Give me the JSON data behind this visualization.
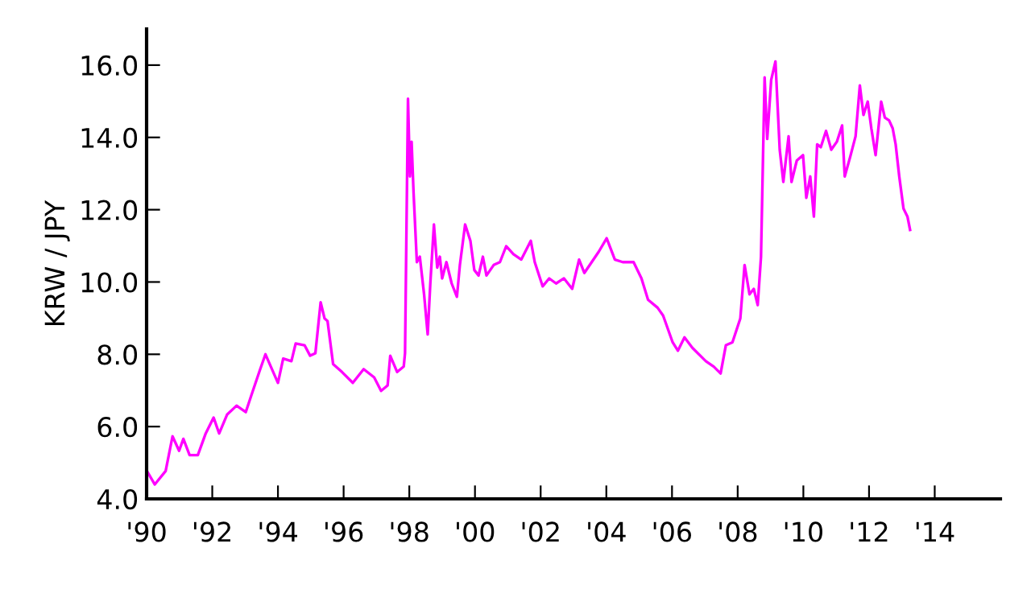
{
  "chart_data": {
    "type": "line",
    "ylabel": "KRW / JPY",
    "xlim": [
      1990,
      2016
    ],
    "ylim": [
      4,
      17
    ],
    "xticks": [
      {
        "value": 1990,
        "label": "'90"
      },
      {
        "value": 1992,
        "label": "'92"
      },
      {
        "value": 1994,
        "label": "'94"
      },
      {
        "value": 1996,
        "label": "'96"
      },
      {
        "value": 1998,
        "label": "'98"
      },
      {
        "value": 2000,
        "label": "'00"
      },
      {
        "value": 2002,
        "label": "'02"
      },
      {
        "value": 2004,
        "label": "'04"
      },
      {
        "value": 2006,
        "label": "'06"
      },
      {
        "value": 2008,
        "label": "'08"
      },
      {
        "value": 2010,
        "label": "'10"
      },
      {
        "value": 2012,
        "label": "'12"
      },
      {
        "value": 2014,
        "label": "'14"
      }
    ],
    "yticks": [
      {
        "value": 4,
        "label": "4.0"
      },
      {
        "value": 6,
        "label": "6.0"
      },
      {
        "value": 8,
        "label": "8.0"
      },
      {
        "value": 10,
        "label": "10.0"
      },
      {
        "value": 12,
        "label": "12.0"
      },
      {
        "value": 14,
        "label": "14.0"
      },
      {
        "value": 16,
        "label": "16.0"
      }
    ],
    "grid": false,
    "legend": false,
    "marker": "none",
    "line_style": "solid",
    "series": [
      {
        "color": "#ff00ff",
        "x": [
          1990.01,
          1990.25,
          1990.58,
          1990.79,
          1990.99,
          1991.12,
          1991.31,
          1991.56,
          1991.8,
          1992.04,
          1992.21,
          1992.45,
          1992.74,
          1993.02,
          1993.18,
          1993.46,
          1993.62,
          1994.0,
          1994.16,
          1994.41,
          1994.54,
          1994.81,
          1994.98,
          1995.14,
          1995.3,
          1995.42,
          1995.51,
          1995.68,
          1995.95,
          1996.28,
          1996.61,
          1996.93,
          1997.14,
          1997.34,
          1997.42,
          1997.63,
          1997.83,
          1997.87,
          1997.96,
          1998.02,
          1998.07,
          1998.13,
          1998.23,
          1998.32,
          1998.45,
          1998.56,
          1998.64,
          1998.75,
          1998.85,
          1998.93,
          1999.0,
          1999.13,
          1999.29,
          1999.45,
          1999.54,
          1999.7,
          1999.86,
          1999.98,
          2000.11,
          2000.24,
          2000.35,
          2000.57,
          2000.76,
          2000.95,
          2001.17,
          2001.41,
          2001.7,
          2001.82,
          2002.06,
          2002.26,
          2002.47,
          2002.71,
          2002.96,
          2003.17,
          2003.33,
          2003.77,
          2004.01,
          2004.26,
          2004.5,
          2004.83,
          2005.07,
          2005.27,
          2005.56,
          2005.73,
          2006.02,
          2006.18,
          2006.38,
          2006.62,
          2007.03,
          2007.27,
          2007.48,
          2007.64,
          2007.84,
          2008.08,
          2008.21,
          2008.36,
          2008.49,
          2008.61,
          2008.71,
          2008.82,
          2008.9,
          2009.02,
          2009.15,
          2009.28,
          2009.39,
          2009.55,
          2009.64,
          2009.8,
          2009.99,
          2010.09,
          2010.21,
          2010.32,
          2010.42,
          2010.53,
          2010.69,
          2010.85,
          2011.02,
          2011.18,
          2011.26,
          2011.42,
          2011.59,
          2011.72,
          2011.83,
          2011.96,
          2012.07,
          2012.2,
          2012.37,
          2012.48,
          2012.61,
          2012.72,
          2012.81,
          2012.92,
          2013.05,
          2013.17,
          2013.25
        ],
        "values": [
          4.77,
          4.4,
          4.77,
          5.73,
          5.33,
          5.66,
          5.21,
          5.21,
          5.81,
          6.25,
          5.81,
          6.33,
          6.58,
          6.4,
          6.84,
          7.59,
          8.0,
          7.21,
          7.88,
          7.81,
          8.3,
          8.25,
          7.96,
          8.03,
          9.44,
          8.99,
          8.92,
          7.73,
          7.51,
          7.21,
          7.59,
          7.36,
          6.99,
          7.14,
          7.96,
          7.51,
          7.66,
          8.03,
          15.07,
          12.92,
          13.88,
          12.47,
          10.55,
          10.7,
          9.66,
          8.55,
          9.96,
          11.59,
          10.4,
          10.7,
          10.1,
          10.55,
          9.96,
          9.59,
          10.47,
          11.59,
          11.14,
          10.33,
          10.18,
          10.7,
          10.18,
          10.47,
          10.55,
          10.99,
          10.77,
          10.62,
          11.14,
          10.55,
          9.88,
          10.1,
          9.96,
          10.1,
          9.81,
          10.62,
          10.25,
          10.84,
          11.21,
          10.62,
          10.55,
          10.55,
          10.1,
          9.51,
          9.29,
          9.07,
          8.33,
          8.1,
          8.47,
          8.18,
          7.81,
          7.66,
          7.47,
          8.25,
          8.33,
          8.99,
          10.47,
          9.66,
          9.81,
          9.36,
          10.7,
          15.66,
          13.96,
          15.59,
          16.1,
          13.66,
          12.77,
          14.03,
          12.77,
          13.36,
          13.51,
          12.33,
          12.92,
          11.81,
          13.81,
          13.73,
          14.18,
          13.66,
          13.88,
          14.33,
          12.92,
          13.44,
          14.03,
          15.44,
          14.62,
          14.99,
          14.25,
          13.51,
          14.99,
          14.55,
          14.47,
          14.25,
          13.81,
          12.92,
          12.03,
          11.81,
          11.44
        ]
      }
    ]
  }
}
